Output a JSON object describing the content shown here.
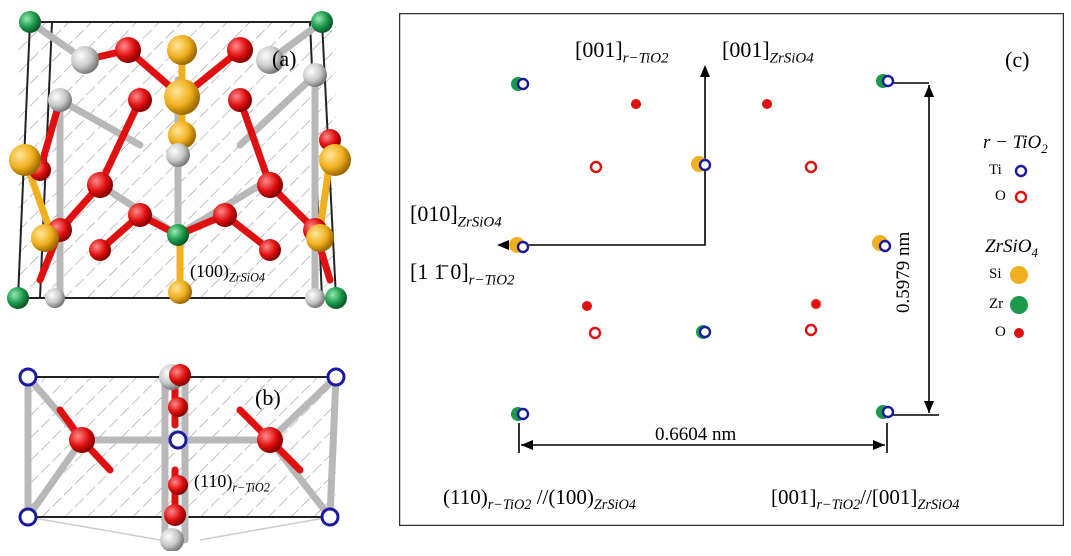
{
  "panel_a": {
    "label": "(a)",
    "plane": "(100)",
    "plane_sub": "ZrSiO4"
  },
  "panel_b": {
    "label": "(b)",
    "plane": "(110)",
    "plane_sub": "r−TiO2"
  },
  "panel_c": {
    "label": "(c)",
    "dir_up_1": "[001]",
    "dir_up_1_sub": "r−TiO2",
    "dir_up_2": "[001]",
    "dir_up_2_sub": "ZrSiO4",
    "dir_left_1": "[010]",
    "dir_left_1_sub": "ZrSiO4",
    "dir_left_2": "[1 1̄ 0]",
    "dir_left_2_sub": "r−TiO2",
    "dim_vertical": "0.5979 nm",
    "dim_horizontal": "0.6604 nm",
    "relation_left": "(110)",
    "relation_left_sub1": "r−TiO2",
    "relation_left_mid": "//(100)",
    "relation_left_sub2": "ZrSiO4",
    "relation_right": "[001]",
    "relation_right_sub1": "r−TiO2",
    "relation_right_mid": "//[001]",
    "relation_right_sub2": "ZrSiO4",
    "legend": {
      "group1_title": "r − TiO",
      "group1_title_sub": "2",
      "ti": "Ti",
      "o1": "O",
      "group2_title": "ZrSiO",
      "group2_title_sub": "4",
      "si": "Si",
      "zr": "Zr",
      "o2": "O"
    }
  },
  "colors": {
    "zr": "#1a9a4a",
    "si": "#f0b020",
    "o": "#e01010",
    "ti": "#1a1aa0",
    "gray": "#c8c8c8"
  }
}
